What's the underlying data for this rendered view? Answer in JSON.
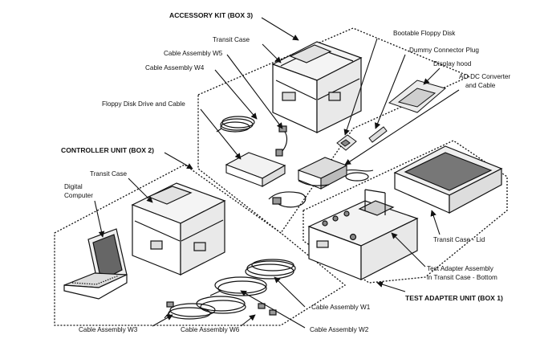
{
  "groups": {
    "accessory_kit": "ACCESSORY KIT (BOX 3)",
    "controller_unit": "CONTROLLER UNIT (BOX 2)",
    "test_adapter_unit": "TEST ADAPTER UNIT (BOX 1)"
  },
  "labels": {
    "transit_case_box3": "Transit Case",
    "cable_w5": "Cable Assembly W5",
    "cable_w4": "Cable Assembly W4",
    "floppy_drive": "Floppy Disk Drive and Cable",
    "bootable_floppy": "Bootable Floppy Disk",
    "dummy_plug": "Dummy Connector Plug",
    "display_hood": "Display hood",
    "acdc_line1": "AC-DC Converter",
    "acdc_line2": "and Cable",
    "transit_case_box2": "Transit Case",
    "digital_line1": "Digital",
    "digital_line2": "Computer",
    "transit_lid": "Transit Case - Lid",
    "tester_line1": "Test Adapter Assembly",
    "tester_line2": "in Transit Case - Bottom",
    "cable_w1": "Cable Assembly W1",
    "cable_w3": "Cable Assembly W3",
    "cable_w6": "Cable Assembly W6",
    "cable_w2": "Cable Assembly W2"
  }
}
